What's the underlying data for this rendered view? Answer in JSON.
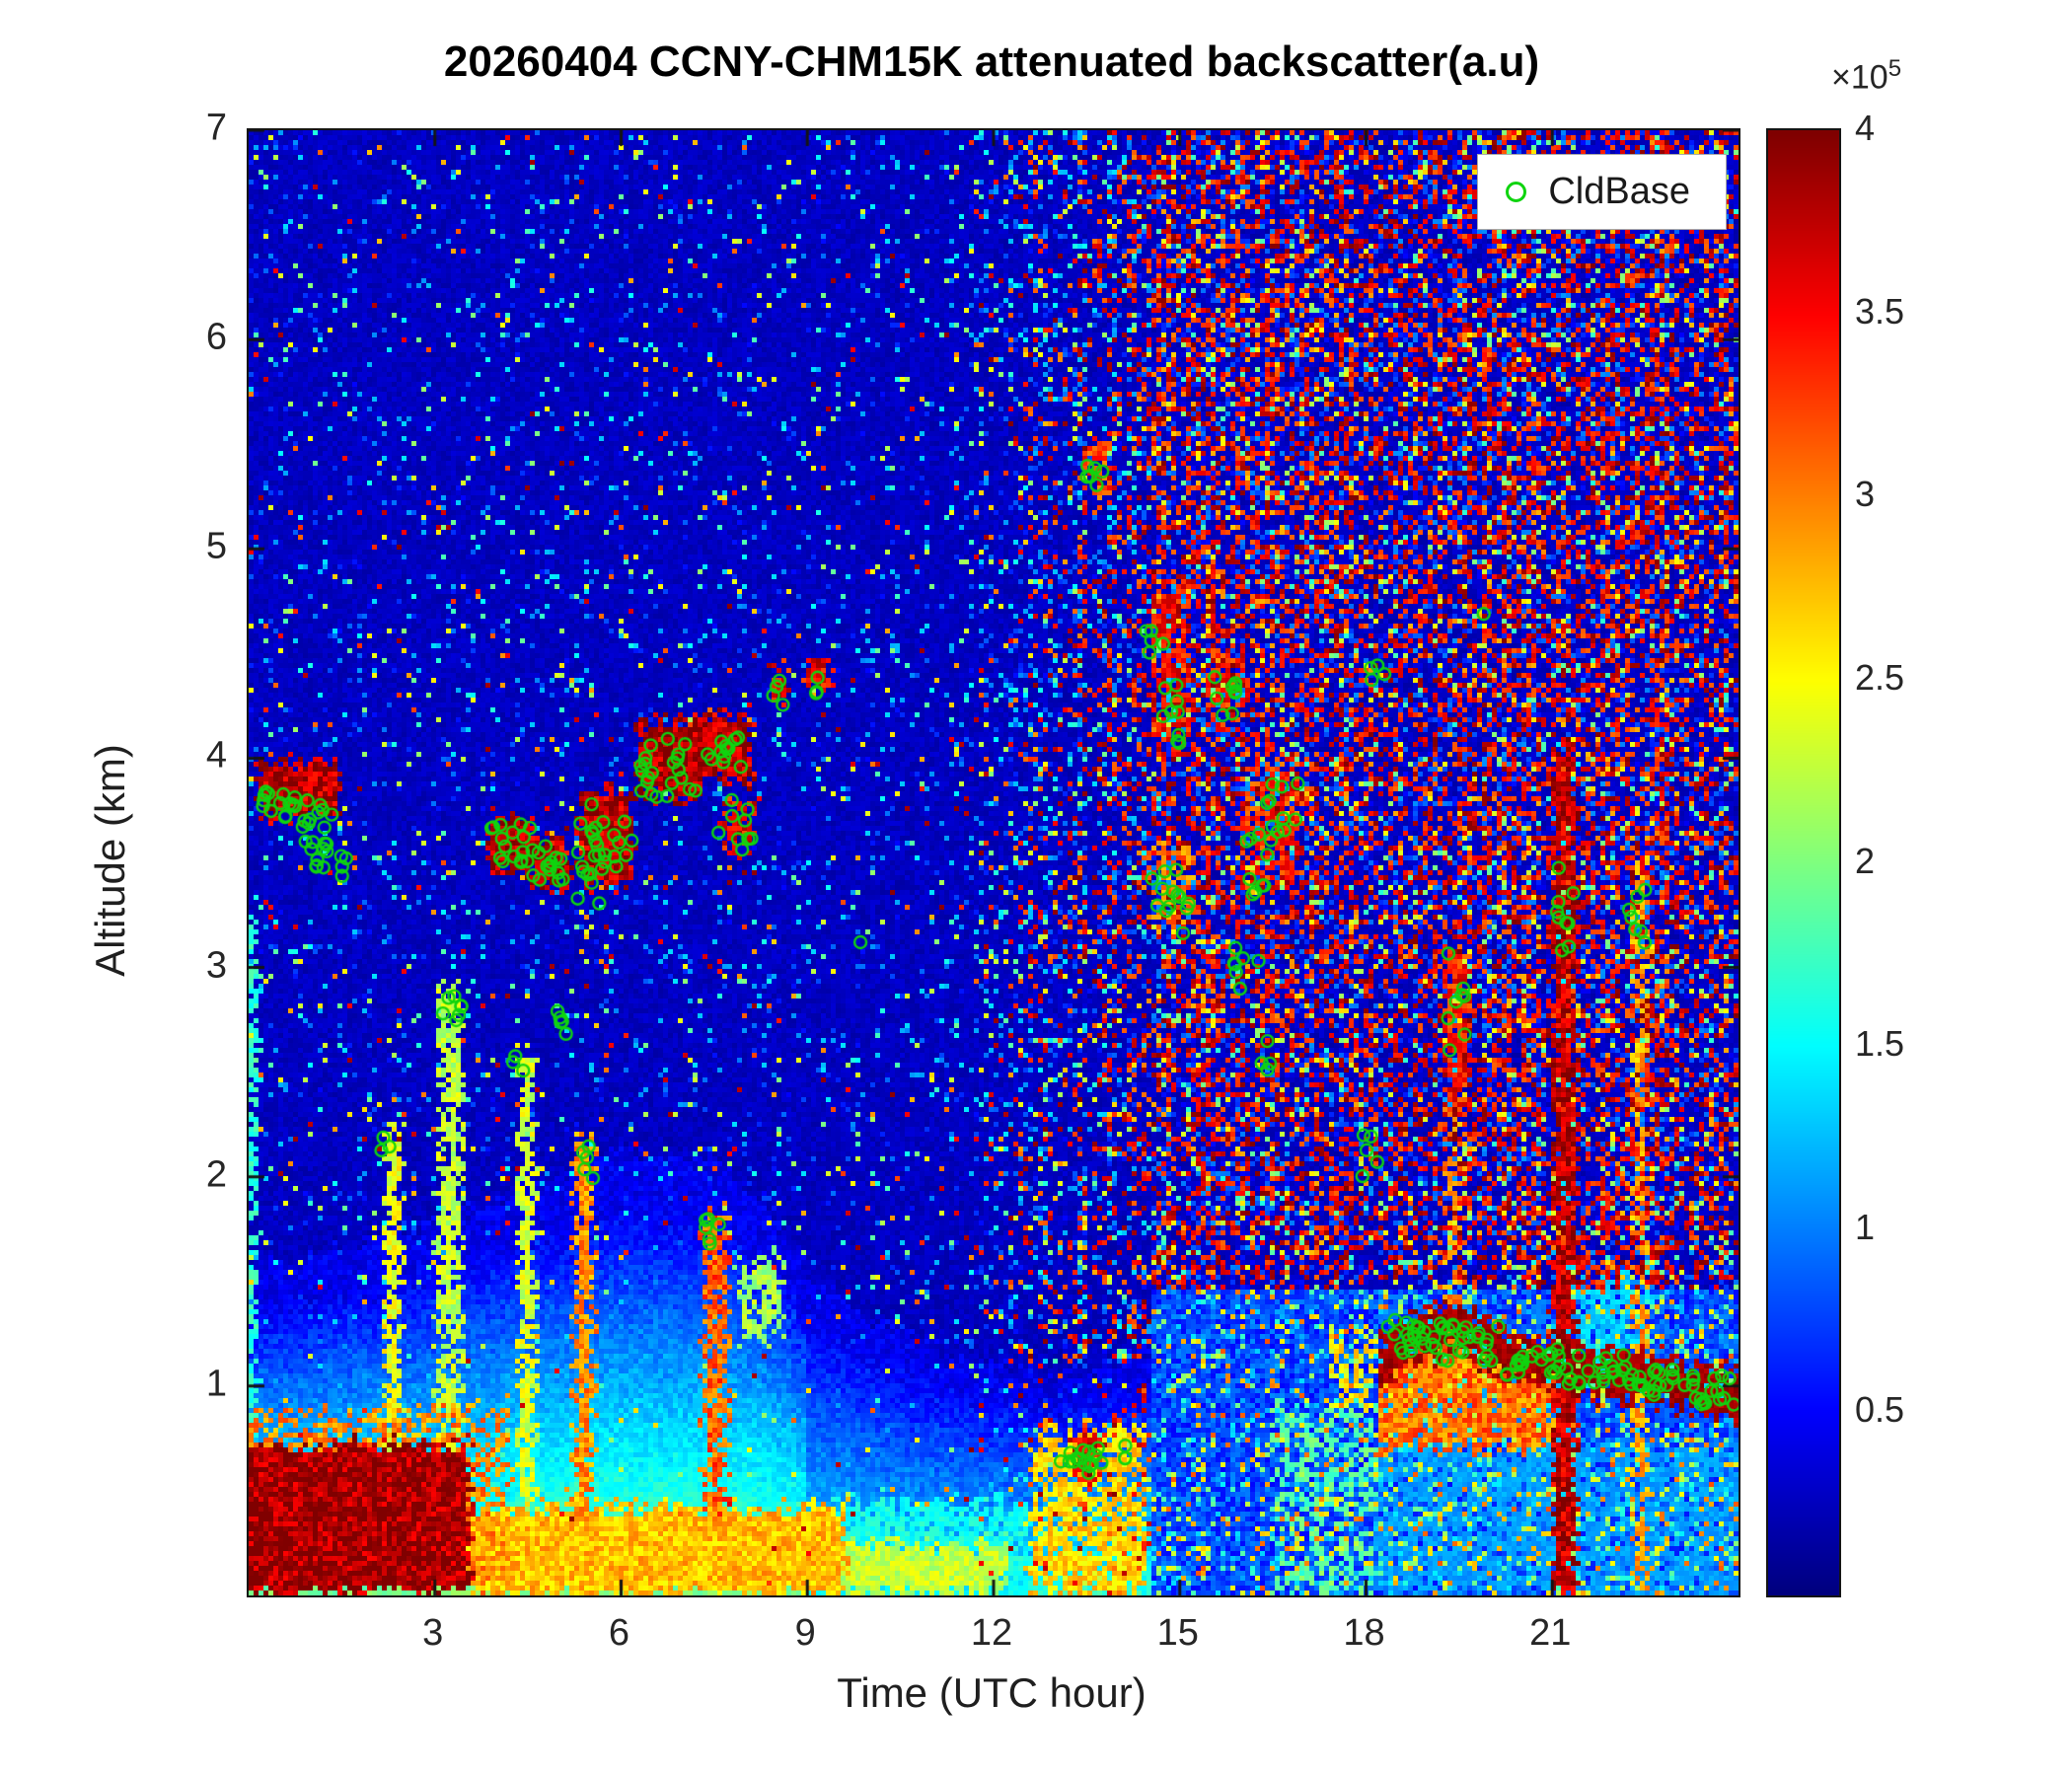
{
  "figure": {
    "title": "20260404 CCNY-CHM15K attenuated backscatter(a.u)",
    "xlabel": "Time (UTC hour)",
    "ylabel": "Altitude (km)"
  },
  "legend": {
    "label": "CldBase",
    "marker_color": "#0fd40f"
  },
  "colorbar": {
    "multiplier_base": "×10",
    "multiplier_exp": "5",
    "ticks": [
      0.5,
      1,
      1.5,
      2,
      2.5,
      3,
      3.5,
      4
    ],
    "min": 0,
    "max": 4
  },
  "chart_data": {
    "type": "heatmap",
    "title": "20260404 CCNY-CHM15K attenuated backscatter(a.u)",
    "xlabel": "Time (UTC hour)",
    "ylabel": "Altitude (km)",
    "x_range": [
      0,
      24
    ],
    "y_range": [
      0,
      7
    ],
    "x_ticks": [
      3,
      6,
      9,
      12,
      15,
      18,
      21
    ],
    "y_ticks": [
      1,
      2,
      3,
      4,
      5,
      6,
      7
    ],
    "colormap": "jet",
    "value_unit": "a.u",
    "value_scale_factor": 100000,
    "clim": [
      0,
      400000
    ],
    "description": "Ceilometer attenuated backscatter curtain plot. Dark-blue noisy free troposphere before ~14.5 UTC; dense red solar background noise above ~1.5 km after ~14.5 UTC. Strong near-surface aerosol (dark red) 0-3.5 UTC below 0.7 km, cyan boundary layer to ~1.5-1.9 km until ~9 UTC, mid-level clouds 3.4-4.2 km from 0-10 UTC, precipitation streak at ~21.2 UTC, and a persistent low cloud deck near 1.0-1.3 km from 18-24 UTC. Green circles mark detected cloud bases.",
    "boundary_layer_height_km": [
      [
        0,
        1.35
      ],
      [
        1.5,
        1.45
      ],
      [
        3,
        1.55
      ],
      [
        4.5,
        1.7
      ],
      [
        6,
        1.85
      ],
      [
        7.5,
        1.8
      ],
      [
        8.3,
        1.65
      ],
      [
        9,
        1.35
      ],
      [
        10,
        1.15
      ],
      [
        11.5,
        1.0
      ],
      [
        13,
        0.9
      ],
      [
        14.5,
        1.0
      ]
    ],
    "cloud_line_km": [
      [
        18.2,
        1.1
      ],
      [
        18.7,
        1.22
      ],
      [
        19.4,
        1.28
      ],
      [
        20.0,
        1.2
      ],
      [
        20.6,
        1.13
      ],
      [
        21.4,
        1.08
      ],
      [
        22.3,
        1.05
      ],
      [
        23.2,
        1.0
      ],
      [
        24,
        0.95
      ]
    ],
    "noise": {
      "day_start": 14.55,
      "ramp_start": 11
    },
    "features": [
      {
        "t": [
          -0.3,
          3.6
        ],
        "z": [
          0,
          0.72
        ],
        "v": 3.95
      },
      {
        "t": [
          -0.3,
          4.2
        ],
        "z": [
          0,
          0.9
        ],
        "v": 3.0,
        "p": 0.5
      },
      {
        "t": [
          -0.3,
          9.6
        ],
        "z": [
          0,
          0.42
        ],
        "v": 2.8
      },
      {
        "t": [
          -0.3,
          12.2
        ],
        "z": [
          0,
          0.24
        ],
        "v": 2.3
      },
      {
        "t": [
          9.4,
          12.6
        ],
        "z": [
          0,
          0.45
        ],
        "v": 1.6,
        "p": 0.8
      },
      {
        "t": [
          12.6,
          14.45
        ],
        "z": [
          0,
          0.8
        ],
        "v": 2.7,
        "p": 0.75
      },
      {
        "t": [
          13.3,
          13.7
        ],
        "z": [
          0.55,
          0.78
        ],
        "v": 3.6
      },
      {
        "t": [
          0,
          0.12
        ],
        "z": [
          0,
          3.3
        ],
        "v": 1.7
      },
      {
        "t": [
          2.2,
          2.45
        ],
        "z": [
          0.4,
          2.25
        ],
        "v": 2.5,
        "p": 0.85
      },
      {
        "t": [
          3.05,
          3.45
        ],
        "z": [
          0.4,
          2.9
        ],
        "v": 2.3,
        "p": 0.8
      },
      {
        "t": [
          4.35,
          4.6
        ],
        "z": [
          0.4,
          2.6
        ],
        "v": 2.4,
        "p": 0.8
      },
      {
        "t": [
          5.25,
          5.55
        ],
        "z": [
          0.4,
          2.2
        ],
        "v": 3.0,
        "p": 0.85
      },
      {
        "t": [
          7.35,
          7.7
        ],
        "z": [
          0.4,
          1.85
        ],
        "v": 3.2,
        "p": 0.9
      },
      {
        "t": [
          7.9,
          8.6
        ],
        "z": [
          1.2,
          1.62
        ],
        "v": 2.2,
        "p": 0.7
      },
      {
        "t": [
          0.15,
          1.45
        ],
        "z": [
          3.72,
          3.98
        ],
        "v": 3.85
      },
      {
        "t": [
          3.85,
          4.6
        ],
        "z": [
          3.45,
          3.72
        ],
        "v": 3.85
      },
      {
        "t": [
          4.55,
          5.15
        ],
        "z": [
          3.38,
          3.62
        ],
        "v": 3.8
      },
      {
        "t": [
          5.35,
          6.2
        ],
        "z": [
          3.4,
          3.85
        ],
        "v": 3.85
      },
      {
        "t": [
          6.25,
          7.3
        ],
        "z": [
          3.82,
          4.18
        ],
        "v": 3.9
      },
      {
        "t": [
          7.3,
          8.1
        ],
        "z": [
          3.9,
          4.2
        ],
        "v": 3.85
      },
      {
        "t": [
          7.6,
          8.15
        ],
        "z": [
          3.55,
          3.78
        ],
        "v": 3.6,
        "p": 0.8
      },
      {
        "t": [
          8.4,
          8.7
        ],
        "z": [
          4.28,
          4.42
        ],
        "v": 3.6
      },
      {
        "t": [
          9.0,
          9.35
        ],
        "z": [
          4.32,
          4.46
        ],
        "v": 3.6
      },
      {
        "t": [
          13.5,
          13.85
        ],
        "z": [
          5.2,
          5.5
        ],
        "v": 3.3,
        "p": 0.7
      },
      {
        "t": [
          14.6,
          15.1
        ],
        "z": [
          4.1,
          4.85
        ],
        "v": 3.6,
        "p": 0.8
      },
      {
        "t": [
          15.5,
          16.1
        ],
        "z": [
          4.25,
          4.5
        ],
        "v": 3.5,
        "p": 0.8
      },
      {
        "t": [
          16.0,
          16.9
        ],
        "z": [
          3.4,
          4.0
        ],
        "v": 3.4,
        "p": 0.7
      },
      {
        "t": [
          14.55,
          15.2
        ],
        "z": [
          3.2,
          3.6
        ],
        "v": 3.1,
        "p": 0.7
      },
      {
        "t": [
          19.3,
          19.62
        ],
        "z": [
          2.3,
          3.1
        ],
        "v": 3.5,
        "p": 0.85
      },
      {
        "t": [
          19.3,
          19.55
        ],
        "z": [
          1.3,
          2.3
        ],
        "v": 3.0,
        "p": 0.6
      },
      {
        "t": [
          21.02,
          21.38
        ],
        "z": [
          0,
          4.05
        ],
        "v": 3.85
      },
      {
        "t": [
          22.3,
          22.52
        ],
        "z": [
          0,
          3.5
        ],
        "v": 2.9,
        "p": 0.8
      },
      {
        "t": [
          21.4,
          22.6
        ],
        "z": [
          1.1,
          1.55
        ],
        "v": 1.35,
        "p": 0.9
      },
      {
        "t": [
          17.4,
          18.2
        ],
        "z": [
          0.9,
          1.25
        ],
        "v": 2.6,
        "p": 0.6
      },
      {
        "t": [
          18.2,
          24.2
        ],
        "z": [
          0,
          0.72
        ],
        "v": 1.15,
        "p": 0.85
      },
      {
        "t": [
          16.5,
          18.2
        ],
        "z": [
          0,
          0.9
        ],
        "v": 1.9,
        "p": 0.5
      }
    ],
    "cloud_base_clusters_t0_t1_z0_z1_n": [
      [
        0.2,
        0.75,
        3.7,
        3.85,
        14
      ],
      [
        0.75,
        1.35,
        3.55,
        3.8,
        16
      ],
      [
        1.0,
        1.3,
        3.45,
        3.6,
        6
      ],
      [
        1.3,
        1.6,
        3.4,
        3.55,
        4
      ],
      [
        2.1,
        2.35,
        2.1,
        2.2,
        3
      ],
      [
        3.0,
        3.6,
        2.7,
        2.9,
        7
      ],
      [
        3.9,
        4.55,
        3.5,
        3.7,
        16
      ],
      [
        4.2,
        4.45,
        2.5,
        2.6,
        3
      ],
      [
        4.55,
        5.1,
        3.4,
        3.6,
        14
      ],
      [
        4.95,
        5.2,
        2.55,
        2.8,
        5
      ],
      [
        5.3,
        5.65,
        3.3,
        3.8,
        16
      ],
      [
        5.35,
        5.6,
        1.95,
        2.2,
        5
      ],
      [
        5.6,
        6.2,
        3.45,
        3.7,
        12
      ],
      [
        6.3,
        7.25,
        3.8,
        4.1,
        22
      ],
      [
        7.3,
        7.95,
        3.95,
        4.15,
        12
      ],
      [
        7.55,
        8.1,
        3.55,
        3.8,
        9
      ],
      [
        7.3,
        7.6,
        1.68,
        1.8,
        6
      ],
      [
        8.4,
        8.65,
        4.25,
        4.38,
        4
      ],
      [
        9.0,
        9.35,
        4.3,
        4.4,
        3
      ],
      [
        9.85,
        9.95,
        3.1,
        3.2,
        1
      ],
      [
        13.05,
        13.3,
        0.6,
        0.7,
        4
      ],
      [
        13.3,
        13.75,
        0.58,
        0.72,
        11
      ],
      [
        14.0,
        14.2,
        0.65,
        0.75,
        3
      ],
      [
        13.5,
        13.8,
        5.15,
        5.4,
        7
      ],
      [
        14.45,
        14.75,
        4.5,
        4.68,
        5
      ],
      [
        14.65,
        15.05,
        4.05,
        4.35,
        9
      ],
      [
        14.55,
        15.15,
        3.15,
        3.5,
        13
      ],
      [
        15.55,
        16.0,
        4.2,
        4.42,
        9
      ],
      [
        15.85,
        16.3,
        2.85,
        3.1,
        7
      ],
      [
        16.05,
        16.6,
        3.35,
        3.65,
        11
      ],
      [
        16.4,
        16.9,
        3.65,
        3.95,
        9
      ],
      [
        16.3,
        16.55,
        2.5,
        2.7,
        4
      ],
      [
        17.9,
        18.25,
        1.95,
        2.2,
        5
      ],
      [
        18.0,
        18.3,
        4.3,
        4.45,
        4
      ],
      [
        19.3,
        19.6,
        2.45,
        3.1,
        8
      ],
      [
        19.85,
        19.95,
        4.65,
        4.75,
        1
      ],
      [
        21.05,
        21.4,
        3.05,
        3.5,
        9
      ],
      [
        22.2,
        22.5,
        3.1,
        3.45,
        7
      ],
      [
        18.25,
        19.2,
        1.15,
        1.32,
        22
      ],
      [
        19.2,
        20.2,
        1.12,
        1.3,
        22
      ],
      [
        20.2,
        21.2,
        1.05,
        1.2,
        20
      ],
      [
        21.2,
        22.2,
        1.0,
        1.15,
        20
      ],
      [
        22.2,
        23.2,
        0.95,
        1.1,
        20
      ],
      [
        23.2,
        24.0,
        0.9,
        1.05,
        16
      ]
    ]
  }
}
